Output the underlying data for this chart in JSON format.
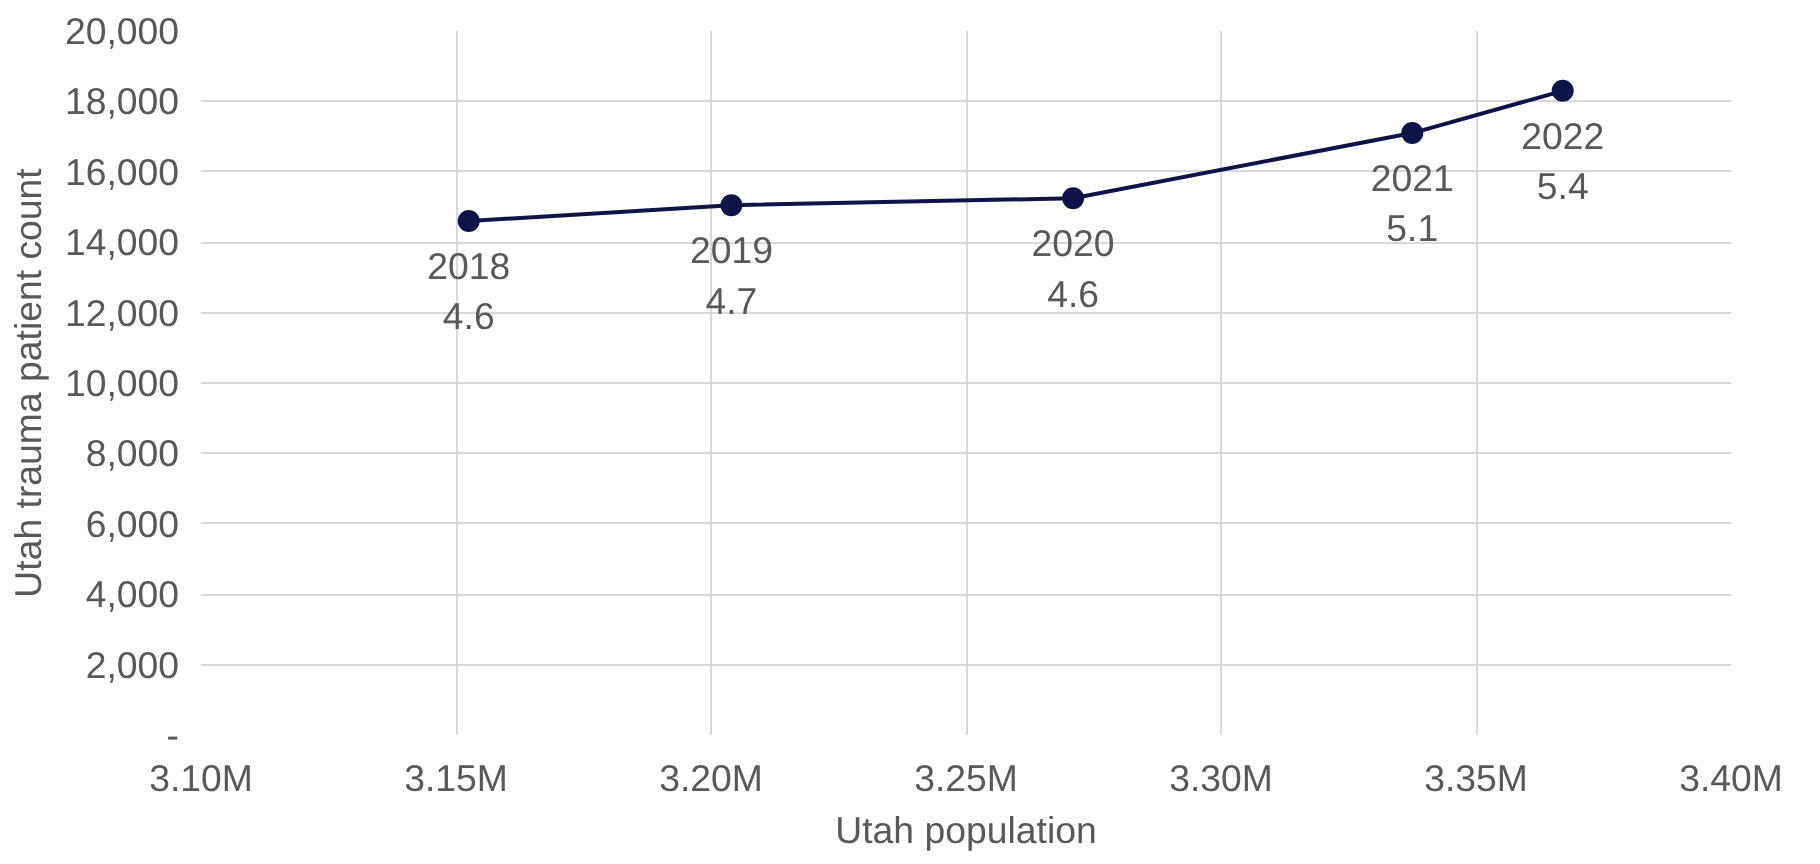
{
  "chart_data": {
    "type": "line",
    "xlabel": "Utah population",
    "ylabel": "Utah trauma patient count",
    "x": [
      3.1525,
      3.204,
      3.271,
      3.3375,
      3.367
    ],
    "series": [
      {
        "color": "#0d1548",
        "values": [
          14600,
          15050,
          15250,
          17100,
          18300
        ]
      }
    ],
    "marker": "circle",
    "line_style": "solid",
    "grid": true,
    "xlim": [
      3.1,
      3.4
    ],
    "xticks": [
      {
        "value": 3.1,
        "label": "3.10M"
      },
      {
        "value": 3.15,
        "label": "3.15M"
      },
      {
        "value": 3.2,
        "label": "3.20M"
      },
      {
        "value": 3.25,
        "label": "3.25M"
      },
      {
        "value": 3.3,
        "label": "3.30M"
      },
      {
        "value": 3.35,
        "label": "3.35M"
      },
      {
        "value": 3.4,
        "label": "3.40M"
      }
    ],
    "ylim": [
      0,
      20000
    ],
    "yticks": [
      {
        "value": 0,
        "label": "-"
      },
      {
        "value": 2000,
        "label": "2,000"
      },
      {
        "value": 4000,
        "label": "4,000"
      },
      {
        "value": 6000,
        "label": "6,000"
      },
      {
        "value": 8000,
        "label": "8,000"
      },
      {
        "value": 10000,
        "label": "10,000"
      },
      {
        "value": 12000,
        "label": "12,000"
      },
      {
        "value": 14000,
        "label": "14,000"
      },
      {
        "value": 16000,
        "label": "16,000"
      },
      {
        "value": 18000,
        "label": "18,000"
      },
      {
        "value": 20000,
        "label": "20,000"
      }
    ],
    "annotations": [
      {
        "text": "2018\n4.6",
        "x": 3.1525,
        "y": 14600
      },
      {
        "text": "2019\n4.7",
        "x": 3.204,
        "y": 15050
      },
      {
        "text": "2020\n4.6",
        "x": 3.271,
        "y": 15250
      },
      {
        "text": "2021\n5.1",
        "x": 3.3375,
        "y": 17100
      },
      {
        "text": "2022\n5.4",
        "x": 3.367,
        "y": 18300
      }
    ]
  }
}
